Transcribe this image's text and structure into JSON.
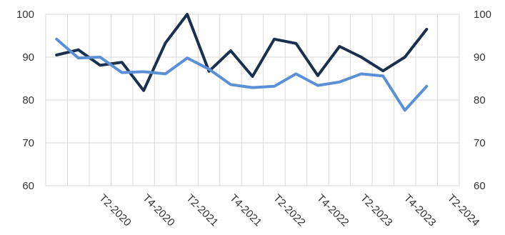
{
  "chart_data": {
    "type": "line",
    "title": "",
    "xlabel": "",
    "ylabel": "",
    "ylim": [
      60,
      100
    ],
    "yticks": [
      60,
      70,
      80,
      90,
      100
    ],
    "secondary_y_axis": {
      "ylim": [
        60,
        100
      ],
      "yticks": [
        60,
        70,
        80,
        90,
        100
      ]
    },
    "grid": true,
    "legend": "none",
    "categories": [
      "T4-2019",
      "T1-2020",
      "T2-2020",
      "T3-2020",
      "T4-2020",
      "T1-2021",
      "T2-2021",
      "T3-2021",
      "T4-2021",
      "T1-2022",
      "T2-2022",
      "T3-2022",
      "T4-2022",
      "T1-2023",
      "T2-2023",
      "T3-2023",
      "T4-2023",
      "T1-2024",
      "T2-2024"
    ],
    "visible_tick_labels": [
      "T2-2020",
      "T4-2020",
      "T2-2021",
      "T4-2021",
      "T2-2022",
      "T4-2022",
      "T2-2023",
      "T4-2023",
      "T2-2024"
    ],
    "series": [
      {
        "color": "#1b2f4e",
        "values": [
          90.5,
          91.7,
          88.1,
          88.8,
          82.2,
          93.3,
          100.0,
          86.7,
          91.5,
          85.5,
          94.2,
          93.2,
          85.7,
          92.5,
          90.0,
          86.8,
          90.0,
          96.5,
          null
        ]
      },
      {
        "color": "#5b8fd6",
        "values": [
          94.2,
          89.8,
          90.0,
          86.4,
          86.6,
          86.1,
          89.8,
          87.2,
          83.6,
          82.9,
          83.2,
          86.1,
          83.4,
          84.2,
          86.1,
          85.6,
          77.6,
          83.2,
          null
        ]
      }
    ]
  }
}
